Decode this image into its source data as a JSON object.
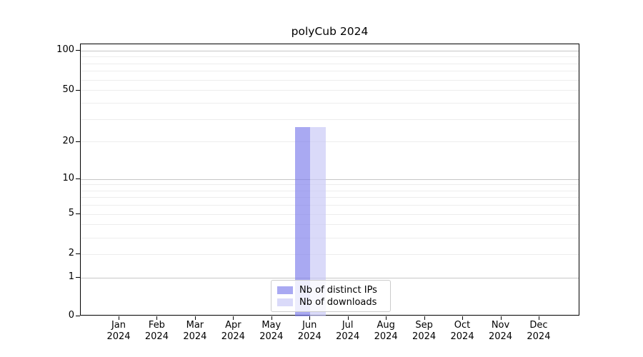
{
  "window": {
    "title": "polyCub 2024"
  },
  "chart_data": {
    "type": "bar",
    "title": "polyCub 2024",
    "categories": [
      "Jan",
      "Feb",
      "Mar",
      "Apr",
      "May",
      "Jun",
      "Jul",
      "Aug",
      "Sep",
      "Oct",
      "Nov",
      "Dec"
    ],
    "x_axis": {
      "year_line": "2024"
    },
    "series": [
      {
        "name": "Nb of distinct IPs",
        "color": "rgba(123,123,235,0.65)",
        "values": [
          0,
          0,
          0,
          0,
          0,
          26,
          0,
          0,
          0,
          0,
          0,
          0
        ]
      },
      {
        "name": "Nb of downloads",
        "color": "rgba(198,198,246,0.65)",
        "values": [
          0,
          0,
          0,
          0,
          0,
          26,
          0,
          0,
          0,
          0,
          0,
          0
        ]
      }
    ],
    "y_axis": {
      "scale": "log1p",
      "range": [
        0,
        110
      ],
      "tick_values": [
        0,
        1,
        2,
        5,
        10,
        20,
        50,
        100
      ],
      "emphasized_gridlines": [
        1,
        10,
        100
      ],
      "gridline_values": [
        1,
        2,
        3,
        4,
        5,
        6,
        7,
        8,
        9,
        10,
        20,
        30,
        40,
        50,
        60,
        70,
        80,
        90,
        100
      ]
    },
    "legend": {
      "position": "bottom-center"
    },
    "grid": true,
    "colors": {
      "major_grid": "#c6c6c6",
      "minor_grid": "#ededed",
      "axis": "#000000",
      "background": "#ffffff"
    }
  }
}
